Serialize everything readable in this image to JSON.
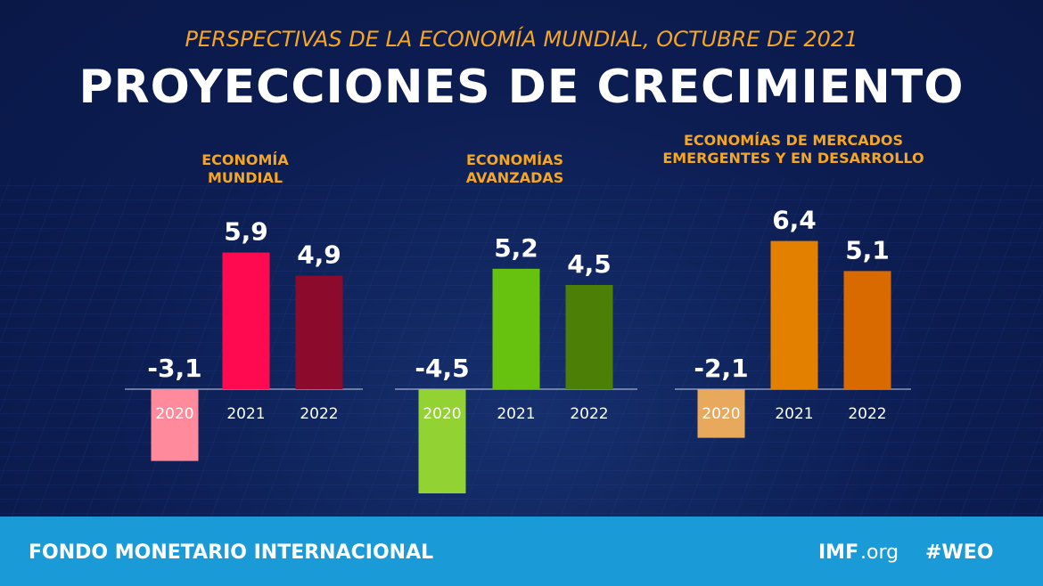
{
  "header": {
    "subtitle": "PERSPECTIVAS DE LA ECONOMÍA MUNDIAL, OCTUBRE DE 2021",
    "title": "PROYECCIONES DE CRECIMIENTO"
  },
  "chart_data": [
    {
      "type": "bar",
      "title": "ECONOMÍA MUNDIAL",
      "categories": [
        "2020",
        "2021",
        "2022"
      ],
      "values": [
        -3.1,
        5.9,
        4.9
      ],
      "value_labels": [
        "-3,1",
        "5,9",
        "4,9"
      ],
      "colors": [
        "#ff8a9c",
        "#ff0a50",
        "#8c0a2c"
      ]
    },
    {
      "type": "bar",
      "title": "ECONOMÍAS AVANZADAS",
      "categories": [
        "2020",
        "2021",
        "2022"
      ],
      "values": [
        -4.5,
        5.2,
        4.5
      ],
      "value_labels": [
        "-4,5",
        "5,2",
        "4,5"
      ],
      "colors": [
        "#92d232",
        "#66c20e",
        "#4c7f06"
      ]
    },
    {
      "type": "bar",
      "title": "ECONOMÍAS DE MERCADOS EMERGENTES Y EN DESARROLLO",
      "categories": [
        "2020",
        "2021",
        "2022"
      ],
      "values": [
        -2.1,
        6.4,
        5.1
      ],
      "value_labels": [
        "-2,1",
        "6,4",
        "5,1"
      ],
      "colors": [
        "#e8a95c",
        "#e38000",
        "#d86a00"
      ]
    }
  ],
  "footer": {
    "organization": "FONDO MONETARIO INTERNACIONAL",
    "site_name": "IMF",
    "site_domain": ".org",
    "hashtag": "#WEO"
  }
}
